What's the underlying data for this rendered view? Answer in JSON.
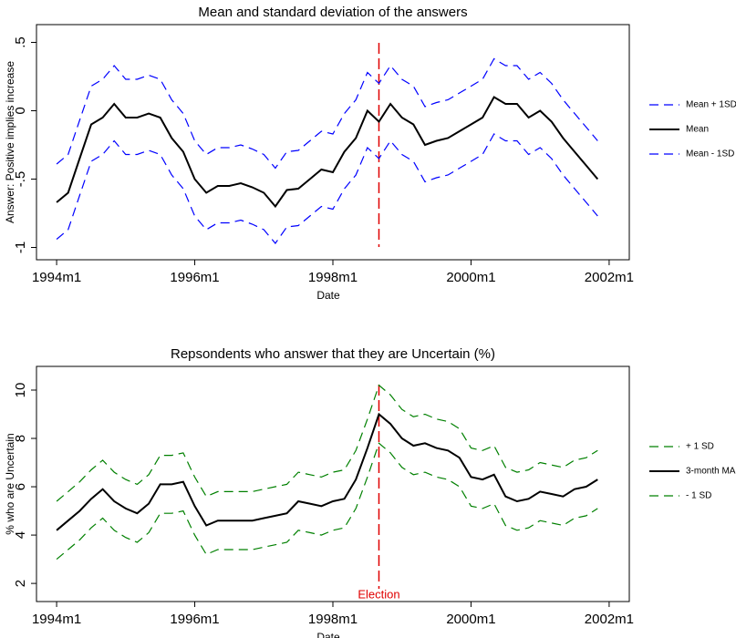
{
  "chart_data": [
    {
      "type": "line",
      "title": "Mean and standard deviation of the answers",
      "xlabel": "Date",
      "ylabel": "Answer: Positive implies increase",
      "legend": "right",
      "x": [
        408,
        410,
        412,
        414,
        416,
        418,
        420,
        422,
        424,
        426,
        428,
        430,
        432,
        434,
        436,
        438,
        440,
        442,
        444,
        446,
        448,
        450,
        452,
        454,
        456,
        458,
        460,
        462,
        464,
        466,
        468,
        470,
        472,
        474,
        476,
        478,
        480,
        482,
        484,
        486,
        488,
        490,
        492,
        494,
        496,
        498,
        500,
        502
      ],
      "series": [
        {
          "name": "Mean + 1SD",
          "color": "#0000ff",
          "dashed": true,
          "values": [
            -0.39,
            -0.32,
            -0.07,
            0.18,
            0.23,
            0.33,
            0.23,
            0.23,
            0.26,
            0.23,
            0.08,
            -0.02,
            -0.22,
            -0.32,
            -0.27,
            -0.27,
            -0.25,
            -0.28,
            -0.32,
            -0.42,
            -0.3,
            -0.29,
            -0.22,
            -0.15,
            -0.17,
            -0.02,
            0.08,
            0.28,
            0.2,
            0.33,
            0.23,
            0.18,
            0.03,
            0.06,
            0.08,
            0.13,
            0.18,
            0.23,
            0.38,
            0.33,
            0.33,
            0.23,
            0.28,
            0.2,
            0.08,
            -0.02,
            -0.12,
            -0.22
          ]
        },
        {
          "name": "Mean",
          "color": "#000000",
          "dashed": false,
          "values": [
            -0.67,
            -0.6,
            -0.35,
            -0.1,
            -0.05,
            0.05,
            -0.05,
            -0.05,
            -0.02,
            -0.05,
            -0.2,
            -0.3,
            -0.5,
            -0.6,
            -0.55,
            -0.55,
            -0.53,
            -0.56,
            -0.6,
            -0.7,
            -0.58,
            -0.57,
            -0.5,
            -0.43,
            -0.45,
            -0.3,
            -0.2,
            0.0,
            -0.08,
            0.05,
            -0.05,
            -0.1,
            -0.25,
            -0.22,
            -0.2,
            -0.15,
            -0.1,
            -0.05,
            0.1,
            0.05,
            0.05,
            -0.05,
            0.0,
            -0.08,
            -0.2,
            -0.3,
            -0.4,
            -0.5
          ]
        },
        {
          "name": "Mean - 1SD",
          "color": "#0000ff",
          "dashed": true,
          "values": [
            -0.94,
            -0.87,
            -0.62,
            -0.37,
            -0.32,
            -0.22,
            -0.32,
            -0.32,
            -0.29,
            -0.32,
            -0.47,
            -0.57,
            -0.77,
            -0.87,
            -0.82,
            -0.82,
            -0.8,
            -0.83,
            -0.87,
            -0.97,
            -0.85,
            -0.84,
            -0.77,
            -0.7,
            -0.72,
            -0.57,
            -0.47,
            -0.27,
            -0.35,
            -0.22,
            -0.32,
            -0.37,
            -0.52,
            -0.49,
            -0.47,
            -0.42,
            -0.37,
            -0.32,
            -0.17,
            -0.22,
            -0.22,
            -0.32,
            -0.27,
            -0.35,
            -0.47,
            -0.57,
            -0.67,
            -0.77
          ]
        }
      ],
      "xlim": [
        404.5,
        507.5
      ],
      "xticks": [
        {
          "value": 408,
          "label": "1994m1"
        },
        {
          "value": 432,
          "label": "1996m1"
        },
        {
          "value": 456,
          "label": "1998m1"
        },
        {
          "value": 480,
          "label": "2000m1"
        },
        {
          "value": 504,
          "label": "2002m1"
        }
      ],
      "ylim": [
        -1.09,
        0.63
      ],
      "yticks": [
        -1,
        {
          "value": -0.5,
          "label": "-.5"
        },
        0,
        {
          "value": 0.5,
          "label": ".5"
        }
      ],
      "vline": {
        "x": 464,
        "color": "#e00000"
      }
    },
    {
      "type": "line",
      "title": "Repsondents who answer that they are Uncertain (%)",
      "xlabel": "Date",
      "ylabel": "% who are Uncertain",
      "legend": "right",
      "x": [
        408,
        410,
        412,
        414,
        416,
        418,
        420,
        422,
        424,
        426,
        428,
        430,
        432,
        434,
        436,
        438,
        440,
        442,
        444,
        446,
        448,
        450,
        452,
        454,
        456,
        458,
        460,
        462,
        464,
        466,
        468,
        470,
        472,
        474,
        476,
        478,
        480,
        482,
        484,
        486,
        488,
        490,
        492,
        494,
        496,
        498,
        500,
        502
      ],
      "series": [
        {
          "name": "+ 1 SD",
          "color": "#008000",
          "dashed": true,
          "values": [
            5.4,
            5.8,
            6.2,
            6.7,
            7.1,
            6.6,
            6.3,
            6.1,
            6.5,
            7.3,
            7.3,
            7.4,
            6.4,
            5.6,
            5.8,
            5.8,
            5.8,
            5.8,
            5.9,
            6.0,
            6.1,
            6.6,
            6.5,
            6.4,
            6.6,
            6.7,
            7.5,
            8.8,
            10.2,
            9.8,
            9.2,
            8.9,
            9.0,
            8.8,
            8.7,
            8.4,
            7.6,
            7.5,
            7.7,
            6.8,
            6.6,
            6.7,
            7.0,
            6.9,
            6.8,
            7.1,
            7.2,
            7.5
          ]
        },
        {
          "name": "3-month MA",
          "color": "#000000",
          "dashed": false,
          "values": [
            4.2,
            4.6,
            5.0,
            5.5,
            5.9,
            5.4,
            5.1,
            4.9,
            5.3,
            6.1,
            6.1,
            6.2,
            5.2,
            4.4,
            4.6,
            4.6,
            4.6,
            4.6,
            4.7,
            4.8,
            4.9,
            5.4,
            5.3,
            5.2,
            5.4,
            5.5,
            6.3,
            7.6,
            9.0,
            8.6,
            8.0,
            7.7,
            7.8,
            7.6,
            7.5,
            7.2,
            6.4,
            6.3,
            6.5,
            5.6,
            5.4,
            5.5,
            5.8,
            5.7,
            5.6,
            5.9,
            6.0,
            6.3
          ]
        },
        {
          "name": "- 1 SD",
          "color": "#008000",
          "dashed": true,
          "values": [
            3.0,
            3.4,
            3.8,
            4.3,
            4.7,
            4.2,
            3.9,
            3.7,
            4.1,
            4.9,
            4.9,
            5.0,
            4.0,
            3.2,
            3.4,
            3.4,
            3.4,
            3.4,
            3.5,
            3.6,
            3.7,
            4.2,
            4.1,
            4.0,
            4.2,
            4.3,
            5.1,
            6.4,
            7.8,
            7.4,
            6.8,
            6.5,
            6.6,
            6.4,
            6.3,
            6.0,
            5.2,
            5.1,
            5.3,
            4.4,
            4.2,
            4.3,
            4.6,
            4.5,
            4.4,
            4.7,
            4.8,
            5.1
          ]
        }
      ],
      "xlim": [
        404.5,
        507.5
      ],
      "xticks": [
        {
          "value": 408,
          "label": "1994m1"
        },
        {
          "value": 432,
          "label": "1996m1"
        },
        {
          "value": 456,
          "label": "1998m1"
        },
        {
          "value": 480,
          "label": "2000m1"
        },
        {
          "value": 504,
          "label": "2002m1"
        }
      ],
      "ylim": [
        1.25,
        10.98
      ],
      "yticks": [
        2,
        4,
        6,
        8,
        10
      ],
      "vline": {
        "x": 464,
        "color": "#e00000",
        "label": "Election"
      }
    }
  ]
}
